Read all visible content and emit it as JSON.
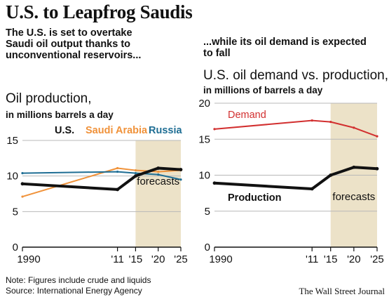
{
  "title": "U.S. to Leapfrog Saudis",
  "left_subtitle": "The U.S. is set to overtake Saudi oil output thanks to unconventional reservoirs...",
  "right_subtitle": "...while its oil demand is expected to fall",
  "note": "Note: Figures include crude and liquids",
  "source": "Source:  International Energy Agency",
  "credit": "The Wall Street Journal",
  "colors": {
    "us": "#111111",
    "saudi": "#f0923a",
    "russia": "#1f6e94",
    "demand": "#d22f2f",
    "forecast_band": "#ece2c8",
    "grid": "#b8b8b8"
  },
  "chart_data": [
    {
      "type": "line",
      "title": "Oil production,",
      "unit": "in millions barrels a day",
      "x_tick_labels": [
        "1990",
        "'11",
        "'15",
        "'20",
        "'25"
      ],
      "y_tick_labels": [
        "0",
        "5",
        "10",
        "15"
      ],
      "xlim": [
        1990,
        2025
      ],
      "ylim": [
        0,
        15
      ],
      "forecast_range": [
        2015,
        2025
      ],
      "forecast_label": "forecasts",
      "grid": true,
      "legend_position": "top",
      "series": [
        {
          "name": "U.S.",
          "color_key": "us",
          "x": [
            1990,
            2011,
            2015,
            2020,
            2025
          ],
          "y": [
            8.9,
            8.1,
            10.0,
            11.1,
            10.9
          ]
        },
        {
          "name": "Saudi Arabia",
          "color_key": "saudi",
          "x": [
            1990,
            2011,
            2015,
            2020,
            2025
          ],
          "y": [
            7.1,
            11.1,
            10.8,
            10.6,
            10.8
          ]
        },
        {
          "name": "Russia",
          "color_key": "russia",
          "x": [
            1990,
            2011,
            2015,
            2020,
            2025
          ],
          "y": [
            10.4,
            10.6,
            10.4,
            10.2,
            9.5
          ]
        }
      ]
    },
    {
      "type": "line",
      "title": "U.S. oil demand vs. production,",
      "unit": "in millions of barrels a day",
      "x_tick_labels": [
        "1990",
        "'11",
        "'15",
        "'20",
        "'25"
      ],
      "y_tick_labels": [
        "0",
        "5",
        "10",
        "15",
        "20"
      ],
      "xlim": [
        1990,
        2025
      ],
      "ylim": [
        0,
        20
      ],
      "forecast_range": [
        2015,
        2025
      ],
      "forecast_label": "forecasts",
      "grid": true,
      "series": [
        {
          "name": "Demand",
          "color_key": "demand",
          "x": [
            1990,
            2011,
            2015,
            2020,
            2025
          ],
          "y": [
            16.4,
            17.6,
            17.4,
            16.6,
            15.4
          ]
        },
        {
          "name": "Production",
          "color_key": "us",
          "x": [
            1990,
            2011,
            2015,
            2020,
            2025
          ],
          "y": [
            8.9,
            8.1,
            10.0,
            11.1,
            10.9
          ]
        }
      ]
    }
  ]
}
